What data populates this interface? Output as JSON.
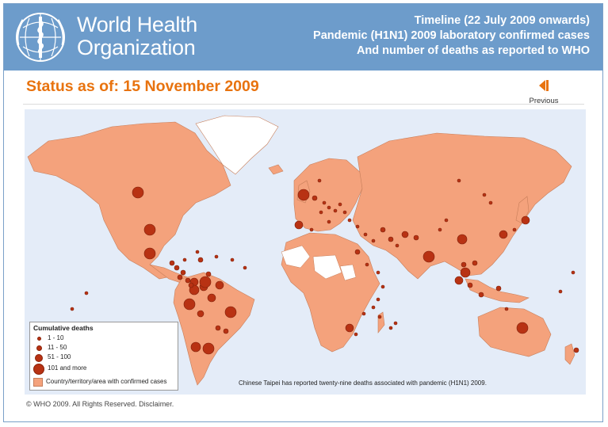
{
  "header": {
    "org_line1": "World Health",
    "org_line2": "Organization",
    "title1": "Timeline (22 July 2009 onwards)",
    "title2": "Pandemic (H1N1) 2009 laboratory confirmed cases",
    "title3": "And number of deaths as reported to WHO"
  },
  "status": {
    "text": "Status as of: 15 November 2009"
  },
  "nav": {
    "previous_label": "Previous"
  },
  "legend": {
    "title": "Cumulative deaths",
    "items": [
      "1 - 10",
      "11 - 50",
      "51 - 100",
      "101 and more"
    ],
    "area_label": "Country/territory/area with confirmed cases"
  },
  "map_note": "Chinese Taipei has reported twenty-nine deaths associated with pandemic (H1N1) 2009.",
  "footer": {
    "text": "© WHO 2009. All Rights Reserved. Disclaimer."
  },
  "colors": {
    "header_bg": "#6d9ccb",
    "status_orange": "#e8730f",
    "land_confirmed": "#f4a27c",
    "land_none": "#ffffff",
    "greenland": "#ffffff",
    "ocean": "#e4ecf8",
    "dot": "#b83213"
  }
}
